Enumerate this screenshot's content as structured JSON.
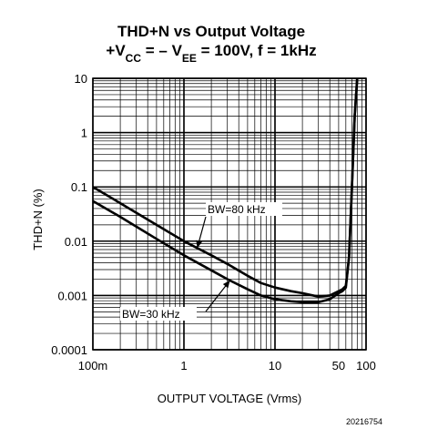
{
  "chart_data": {
    "type": "line",
    "title": {
      "line1": "THD+N vs Output Voltage",
      "line2": {
        "plus_prefix": "+V",
        "vcc_sub": "CC",
        "mid": " = – V",
        "vee_sub": "EE",
        "suffix": " = 100V, f = 1kHz"
      }
    },
    "xlabel": "OUTPUT VOLTAGE (Vrms)",
    "ylabel": "THD+N (%)",
    "x_scale": "log",
    "y_scale": "log",
    "xlim": [
      0.1,
      100
    ],
    "ylim": [
      0.0001,
      10
    ],
    "x_ticks": [
      {
        "value": 0.1,
        "label": "100m"
      },
      {
        "value": 1,
        "label": "1"
      },
      {
        "value": 10,
        "label": "10"
      },
      {
        "value": 50,
        "label": "50"
      },
      {
        "value": 100,
        "label": "100"
      }
    ],
    "y_ticks": [
      {
        "value": 10,
        "label": "10"
      },
      {
        "value": 1,
        "label": "1"
      },
      {
        "value": 0.1,
        "label": "0.1"
      },
      {
        "value": 0.01,
        "label": "0.01"
      },
      {
        "value": 0.001,
        "label": "0.001"
      },
      {
        "value": 0.0001,
        "label": "0.0001"
      }
    ],
    "grid": true,
    "series": [
      {
        "name": "BW=80 kHz",
        "x": [
          0.1,
          0.2,
          0.5,
          1,
          2,
          3,
          5,
          7,
          10,
          15,
          20,
          30,
          40,
          50,
          55,
          60,
          65,
          70,
          75,
          80
        ],
        "y": [
          0.1,
          0.05,
          0.02,
          0.01,
          0.0055,
          0.0038,
          0.0023,
          0.0017,
          0.0014,
          0.0012,
          0.0011,
          0.00095,
          0.001,
          0.0012,
          0.0013,
          0.0015,
          0.005,
          0.1,
          2,
          10
        ]
      },
      {
        "name": "BW=30 kHz",
        "x": [
          0.1,
          0.2,
          0.5,
          1,
          2,
          3,
          5,
          7,
          10,
          15,
          20,
          30,
          40,
          50,
          55,
          60,
          65,
          70,
          75,
          80
        ],
        "y": [
          0.055,
          0.028,
          0.011,
          0.0055,
          0.0029,
          0.002,
          0.0013,
          0.001,
          0.00085,
          0.00078,
          0.00075,
          0.00075,
          0.00085,
          0.0011,
          0.0012,
          0.0014,
          0.005,
          0.1,
          2,
          10
        ]
      }
    ],
    "annotations": [
      {
        "text": "BW=80 kHz",
        "series": "BW=80 kHz"
      },
      {
        "text": "BW=30 kHz",
        "series": "BW=30 kHz"
      }
    ],
    "figure_code": "20216754"
  }
}
